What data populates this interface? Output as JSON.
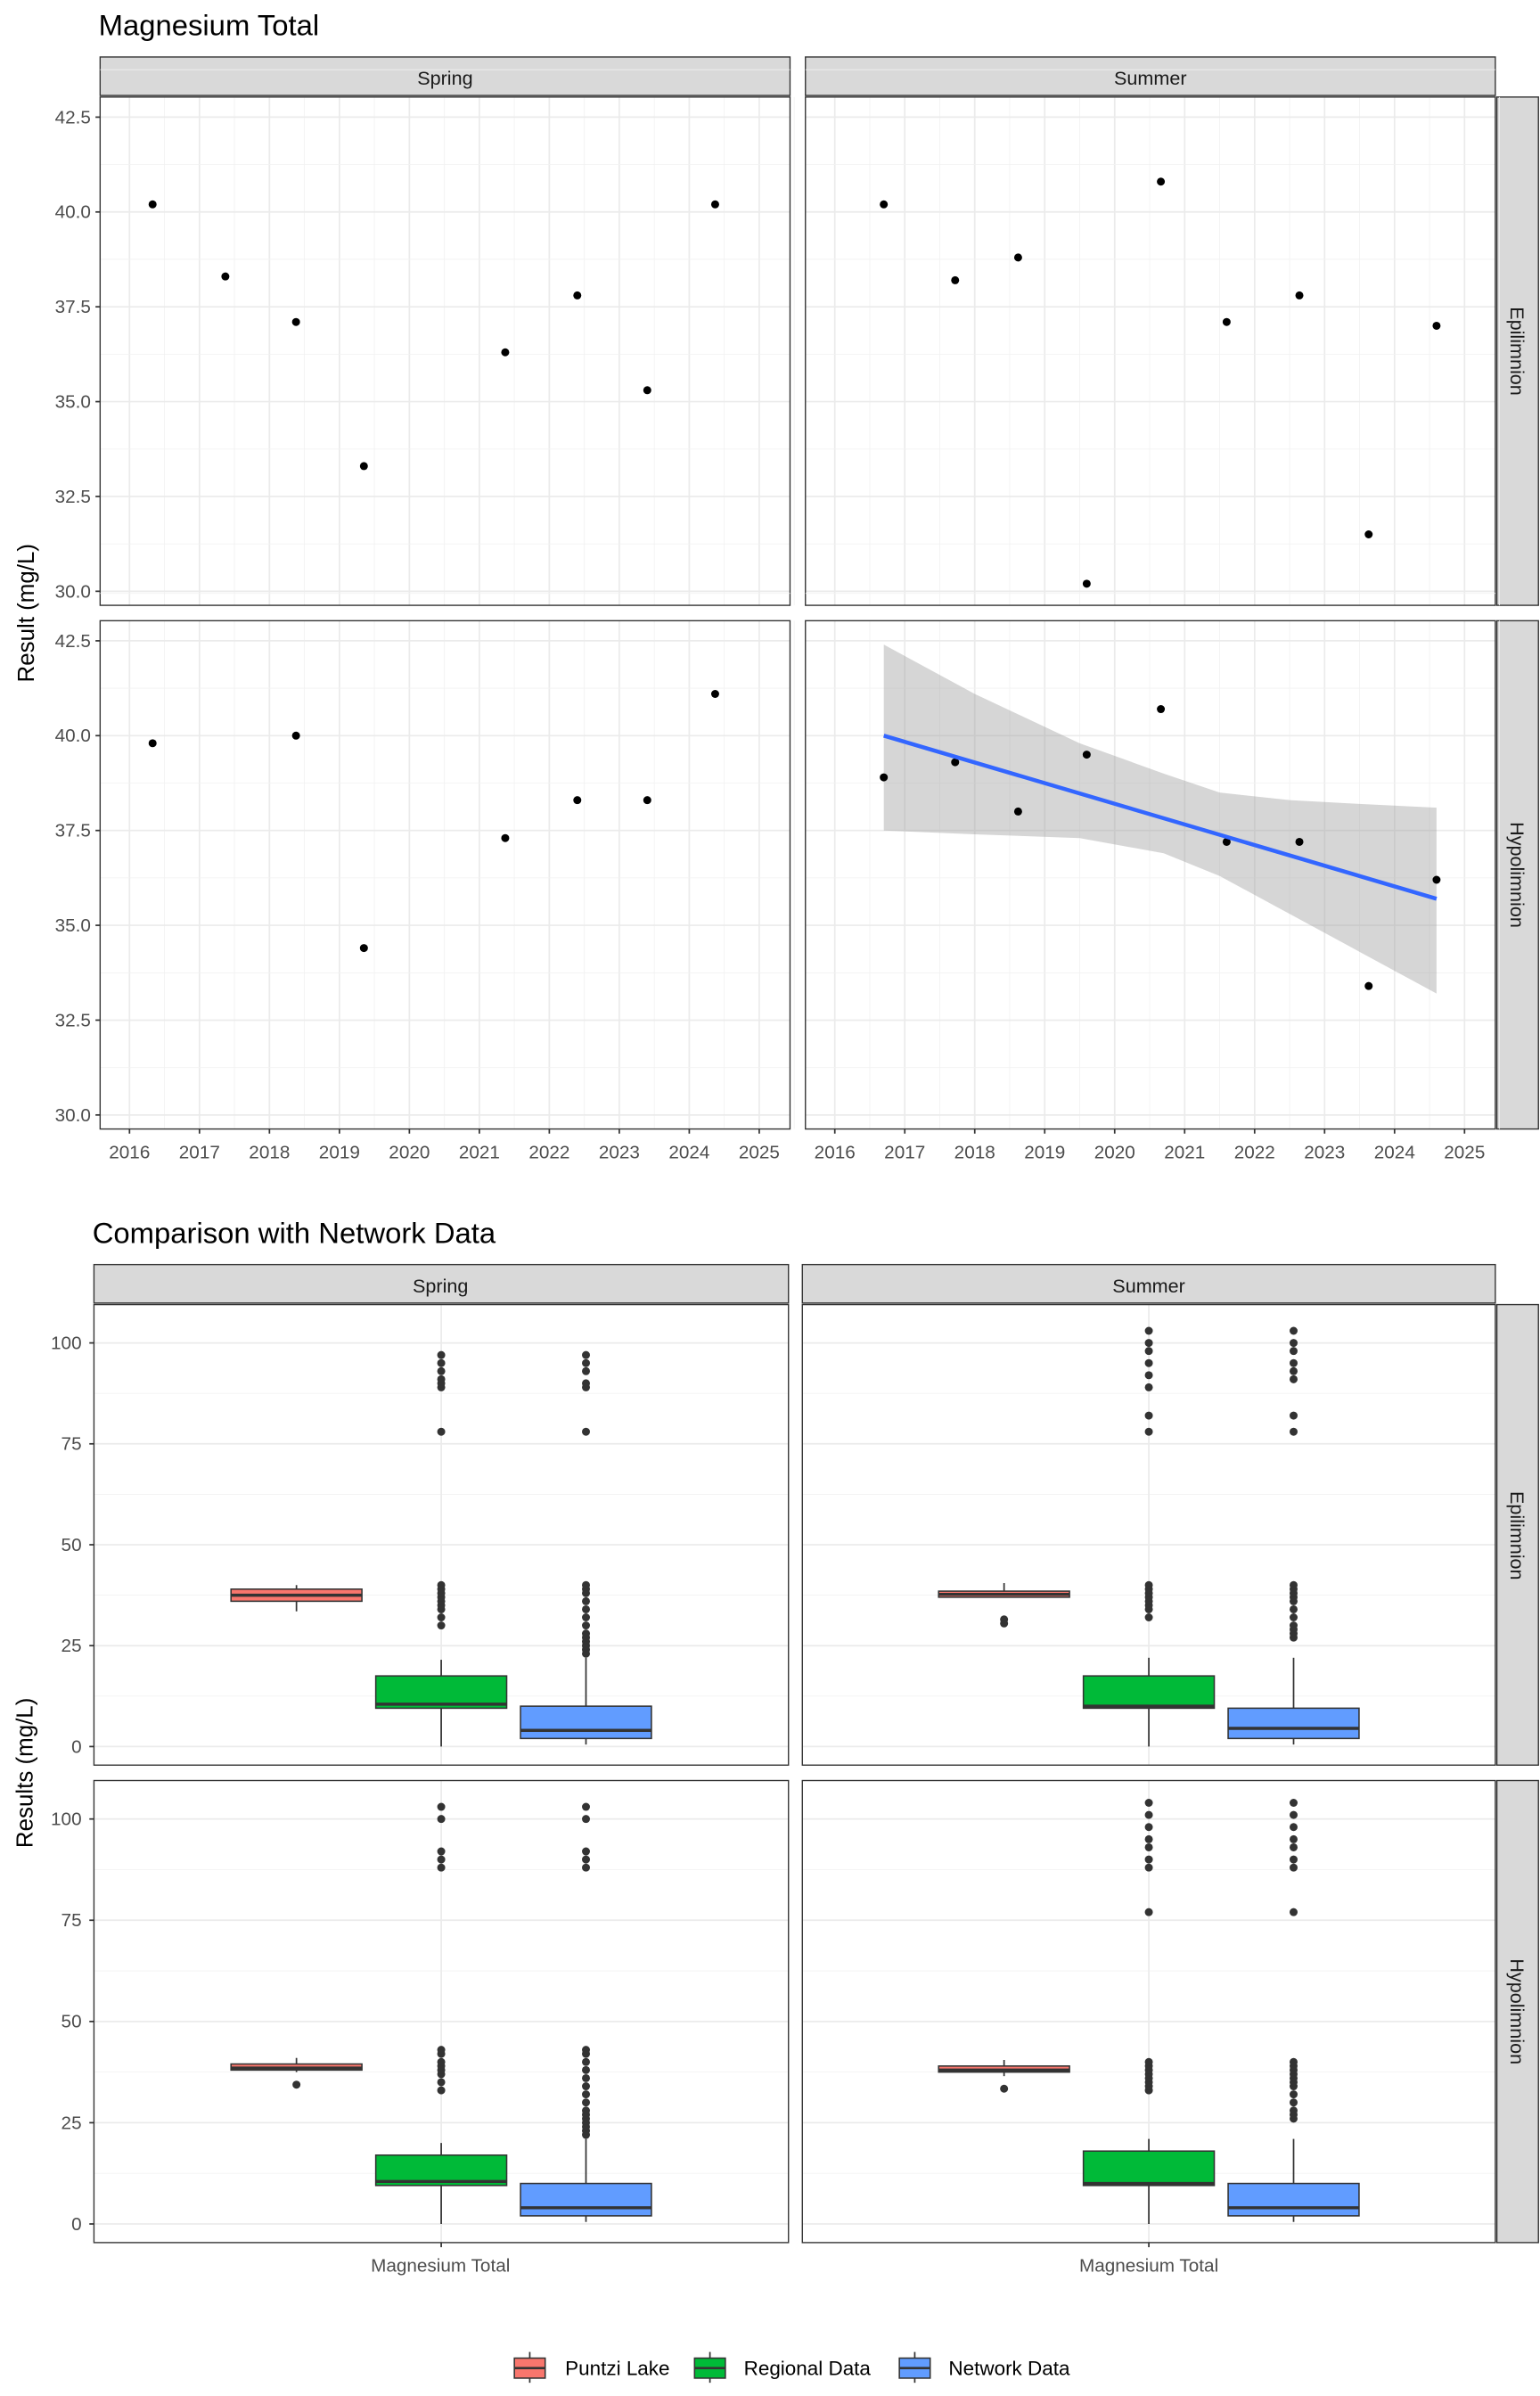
{
  "chart_data": [
    {
      "type": "scatter",
      "title": "Magnesium Total",
      "ylabel": "Result (mg/L)",
      "xlabel": "",
      "xlim": [
        2015.58,
        2025.44
      ],
      "ylim": [
        29.63,
        43.03
      ],
      "grid": true,
      "xticks": [
        2016,
        2017,
        2018,
        2019,
        2020,
        2021,
        2022,
        2023,
        2024,
        2025
      ],
      "xtick_labels": [
        "2016",
        "2017",
        "2018",
        "2019",
        "2020",
        "2021",
        "2022",
        "2023",
        "2024",
        "2025"
      ],
      "yticks": [
        30,
        32.5,
        35,
        37.5,
        40,
        42.5
      ],
      "ytick_labels": [
        "30.0",
        "32.5",
        "35.0",
        "37.5",
        "40.0",
        "42.5"
      ],
      "cols": [
        "Spring",
        "Summer"
      ],
      "rows": [
        "Epilimnion",
        "Hypolimnion"
      ],
      "point_color": "#000000",
      "trend_color": "#3366FF",
      "panels": [
        {
          "col": 0,
          "row": 0,
          "points": [
            [
              2016.33,
              40.2
            ],
            [
              2017.37,
              38.3
            ],
            [
              2018.38,
              37.1
            ],
            [
              2019.35,
              33.3
            ],
            [
              2021.37,
              36.3
            ],
            [
              2022.4,
              37.8
            ],
            [
              2023.4,
              35.3
            ],
            [
              2024.37,
              40.2
            ]
          ]
        },
        {
          "col": 1,
          "row": 0,
          "points": [
            [
              2016.7,
              40.2
            ],
            [
              2017.72,
              38.2
            ],
            [
              2018.62,
              38.8
            ],
            [
              2019.6,
              30.2
            ],
            [
              2020.66,
              40.8
            ],
            [
              2021.6,
              37.1
            ],
            [
              2022.64,
              37.8
            ],
            [
              2023.63,
              31.5
            ],
            [
              2024.6,
              37.0
            ]
          ]
        },
        {
          "col": 0,
          "row": 1,
          "points": [
            [
              2016.33,
              39.8
            ],
            [
              2018.38,
              40.0
            ],
            [
              2019.35,
              34.4
            ],
            [
              2021.37,
              37.3
            ],
            [
              2022.4,
              38.3
            ],
            [
              2023.4,
              38.3
            ],
            [
              2024.37,
              41.1
            ]
          ]
        },
        {
          "col": 1,
          "row": 1,
          "points": [
            [
              2016.7,
              38.9
            ],
            [
              2017.72,
              39.3
            ],
            [
              2018.62,
              38.0
            ],
            [
              2019.6,
              39.5
            ],
            [
              2020.66,
              40.7
            ],
            [
              2021.6,
              37.2
            ],
            [
              2022.64,
              37.2
            ],
            [
              2023.63,
              33.4
            ],
            [
              2024.6,
              36.2
            ]
          ],
          "trend": {
            "x": [
              2016.7,
              2024.6
            ],
            "y": [
              40.0,
              35.7
            ],
            "ribbon": [
              [
                2016.7,
                37.5,
                42.4
              ],
              [
                2018.0,
                37.4,
                41.1
              ],
              [
                2019.5,
                37.3,
                39.8
              ],
              [
                2020.7,
                36.9,
                39.0
              ],
              [
                2021.5,
                36.3,
                38.5
              ],
              [
                2022.5,
                35.3,
                38.3
              ],
              [
                2023.5,
                34.3,
                38.2
              ],
              [
                2024.6,
                33.2,
                38.1
              ]
            ]
          }
        }
      ]
    },
    {
      "type": "box",
      "title": "Comparison with Network Data",
      "ylabel": "Results (mg/L)",
      "xlabel": "",
      "category": "Magnesium Total",
      "ylim": [
        -4.6,
        109.5
      ],
      "grid": true,
      "yticks": [
        0,
        25,
        50,
        75,
        100
      ],
      "ytick_labels": [
        "0",
        "25",
        "50",
        "75",
        "100"
      ],
      "cols": [
        "Spring",
        "Summer"
      ],
      "rows": [
        "Epilimnion",
        "Hypolimnion"
      ],
      "legend_position": "bottom",
      "series": [
        {
          "name": "Puntzi Lake",
          "color": "#F8766D"
        },
        {
          "name": "Regional Data",
          "color": "#00BA38"
        },
        {
          "name": "Network Data",
          "color": "#619CFF"
        }
      ],
      "panels": [
        {
          "col": 0,
          "row": 0,
          "boxes": [
            {
              "lo": 33.5,
              "q1": 36,
              "med": 37.5,
              "q3": 39,
              "hi": 40,
              "out": []
            },
            {
              "lo": 0,
              "q1": 9.5,
              "med": 10.5,
              "q3": 17.5,
              "hi": 21.5,
              "out": [
                30,
                32,
                34,
                35,
                36,
                37,
                38,
                39,
                40,
                78,
                89,
                90,
                91,
                93,
                95,
                97
              ]
            },
            {
              "lo": 0.5,
              "q1": 2,
              "med": 4,
              "q3": 10,
              "hi": 22,
              "out": [
                23,
                24,
                25,
                26,
                27,
                28,
                30,
                32,
                34,
                36,
                38,
                39,
                40,
                78,
                89,
                90,
                93,
                95,
                97
              ]
            }
          ]
        },
        {
          "col": 1,
          "row": 0,
          "boxes": [
            {
              "lo": 37,
              "q1": 37,
              "med": 37.7,
              "q3": 38.5,
              "hi": 40.5,
              "out": [
                30.5,
                31.5
              ]
            },
            {
              "lo": 0,
              "q1": 9.5,
              "med": 10,
              "q3": 17.5,
              "hi": 22,
              "out": [
                32,
                34,
                35,
                36,
                37,
                38,
                39,
                40,
                78,
                82,
                89,
                92,
                95,
                98,
                100,
                103
              ]
            },
            {
              "lo": 0.5,
              "q1": 2,
              "med": 4.5,
              "q3": 9.5,
              "hi": 22,
              "out": [
                27,
                28,
                29,
                30,
                32,
                34,
                36,
                37,
                38,
                39,
                40,
                78,
                82,
                91,
                93,
                95,
                98,
                100,
                103
              ]
            }
          ]
        },
        {
          "col": 0,
          "row": 1,
          "boxes": [
            {
              "lo": 37.5,
              "q1": 38,
              "med": 38.5,
              "q3": 39.5,
              "hi": 41,
              "out": [
                34.4
              ]
            },
            {
              "lo": 0,
              "q1": 9.5,
              "med": 10.5,
              "q3": 17,
              "hi": 20,
              "out": [
                33,
                35,
                37,
                38,
                39,
                40,
                42,
                43,
                88,
                90,
                92,
                100,
                103
              ]
            },
            {
              "lo": 0.5,
              "q1": 2,
              "med": 4,
              "q3": 10,
              "hi": 21,
              "out": [
                22,
                23,
                24,
                25,
                26,
                27,
                28,
                30,
                32,
                34,
                36,
                38,
                40,
                42,
                43,
                88,
                90,
                92,
                100,
                103
              ]
            }
          ]
        },
        {
          "col": 1,
          "row": 1,
          "boxes": [
            {
              "lo": 36.5,
              "q1": 37.5,
              "med": 38,
              "q3": 39,
              "hi": 40.5,
              "out": [
                33.4
              ]
            },
            {
              "lo": 0,
              "q1": 9.5,
              "med": 10,
              "q3": 18,
              "hi": 21,
              "out": [
                33,
                34,
                35,
                36,
                37,
                38,
                39,
                40,
                77,
                88,
                90,
                93,
                95,
                98,
                101,
                104
              ]
            },
            {
              "lo": 0.5,
              "q1": 2,
              "med": 4,
              "q3": 10,
              "hi": 21,
              "out": [
                26,
                27,
                28,
                30,
                32,
                34,
                35,
                36,
                37,
                38,
                39,
                40,
                77,
                88,
                90,
                93,
                95,
                98,
                101,
                104
              ]
            }
          ]
        }
      ]
    }
  ]
}
